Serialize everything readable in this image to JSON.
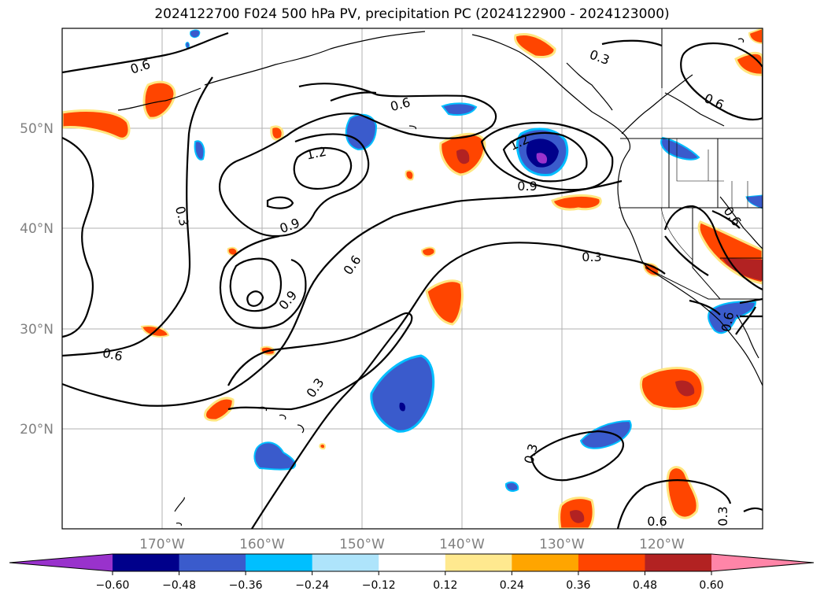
{
  "title": "2024122700 F024 500 hPa PV, precipitation PC (2024122900 - 2024123000)",
  "map": {
    "lat_labels": [
      "50°N",
      "40°N",
      "30°N",
      "20°N"
    ],
    "lon_labels": [
      "170°W",
      "160°W",
      "150°W",
      "140°W",
      "130°W",
      "120°W"
    ],
    "contour_labels": [
      "0.6",
      "0.6",
      "1.2",
      "0.3",
      "0.9",
      "0.6",
      "0.9",
      "0.6",
      "0.3",
      "0.3",
      "1.2",
      "0.9",
      "0.3",
      "0.6",
      "0.3",
      "0.6",
      "0.3",
      "0.6",
      "0.6",
      "0.3"
    ],
    "colors": {
      "contour": "#000000",
      "coastline": "#000000",
      "grid": "#b0b0b0",
      "pos_low": "#ffe680",
      "pos_mid": "#ffa500",
      "pos_high": "#ff4500",
      "pos_top": "#b22222",
      "neg_low": "#00bfff",
      "neg_mid": "#3a5bcc",
      "neg_high": "#00008b",
      "neg_top": "#9932cc"
    }
  },
  "colorbar": {
    "ticks": [
      "−0.60",
      "−0.48",
      "−0.36",
      "−0.24",
      "−0.12",
      "0.12",
      "0.24",
      "0.36",
      "0.48",
      "0.60"
    ],
    "colors": [
      "#9932cc",
      "#00008b",
      "#3a5bcc",
      "#00bfff",
      "#aee4fb",
      "#ffffff",
      "#ffe98f",
      "#ffa500",
      "#ff4500",
      "#b22222",
      "#ff85a8"
    ]
  }
}
